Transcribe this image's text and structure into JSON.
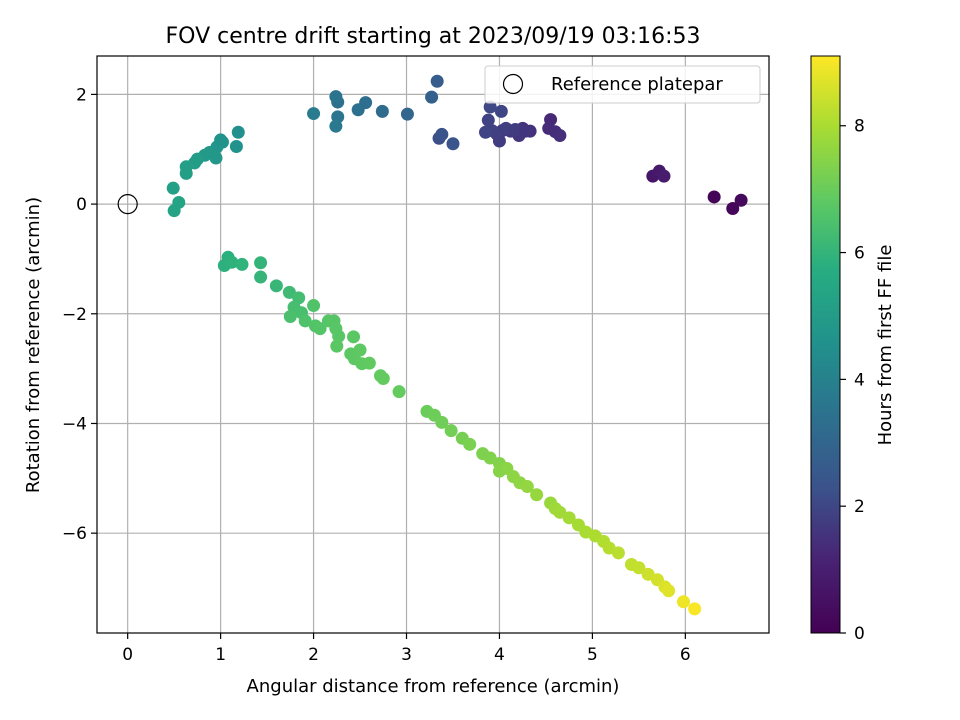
{
  "chart_data": {
    "type": "scatter",
    "title": "FOV centre drift starting at 2023/09/19 03:16:53",
    "xlabel": "Angular distance from reference (arcmin)",
    "ylabel": "Rotation from reference (arcmin)",
    "xlim": [
      -0.33,
      6.9
    ],
    "ylim": [
      -7.82,
      2.7
    ],
    "xticks": [
      0,
      1,
      2,
      3,
      4,
      5,
      6
    ],
    "yticks": [
      2,
      0,
      -2,
      -4,
      -6
    ],
    "ytick_labels": [
      "2",
      "0",
      "−2",
      "−4",
      "−6"
    ],
    "grid": true,
    "legend": {
      "location": "top-right",
      "entries": [
        "Reference platepar"
      ]
    },
    "reference_point": {
      "x": 0,
      "y": 0,
      "label": "Reference platepar"
    },
    "colorbar": {
      "label": "Hours from first FF file",
      "range": [
        0,
        9.1
      ],
      "ticks": [
        0,
        2,
        4,
        6,
        8
      ],
      "colormap": "viridis"
    },
    "series": [
      {
        "color_value": "hours",
        "points": [
          [
            6.31,
            0.13,
            0.1
          ],
          [
            6.51,
            -0.08,
            0.2
          ],
          [
            6.6,
            0.07,
            0.3
          ],
          [
            5.65,
            0.51,
            0.7
          ],
          [
            5.72,
            0.6,
            0.8
          ],
          [
            5.77,
            0.51,
            0.9
          ],
          [
            4.55,
            1.54,
            1.3
          ],
          [
            4.53,
            1.38,
            1.35
          ],
          [
            4.6,
            1.32,
            1.4
          ],
          [
            4.65,
            1.25,
            1.45
          ],
          [
            4.33,
            1.33,
            1.5
          ],
          [
            4.25,
            1.38,
            1.55
          ],
          [
            4.21,
            1.25,
            1.6
          ],
          [
            4.12,
            1.33,
            1.65
          ],
          [
            4.03,
            1.34,
            1.7
          ],
          [
            4.0,
            1.15,
            1.75
          ],
          [
            3.97,
            1.28,
            1.8
          ],
          [
            3.92,
            1.34,
            1.85
          ],
          [
            3.88,
            1.53,
            1.9
          ],
          [
            3.85,
            1.31,
            1.95
          ],
          [
            4.02,
            1.69,
            2.0
          ],
          [
            3.9,
            1.77,
            2.05
          ],
          [
            4.07,
            1.38,
            1.8
          ],
          [
            4.17,
            1.36,
            1.75
          ],
          [
            4.28,
            1.33,
            1.58
          ],
          [
            3.35,
            1.2,
            2.2
          ],
          [
            3.38,
            1.27,
            2.3
          ],
          [
            3.5,
            1.1,
            2.4
          ],
          [
            3.33,
            2.24,
            2.7
          ],
          [
            3.27,
            1.95,
            2.8
          ],
          [
            3.01,
            1.64,
            3.0
          ],
          [
            2.74,
            1.69,
            3.2
          ],
          [
            2.56,
            1.85,
            3.3
          ],
          [
            2.48,
            1.72,
            3.35
          ],
          [
            2.26,
            1.86,
            3.4
          ],
          [
            2.24,
            1.96,
            3.5
          ],
          [
            2.26,
            1.59,
            3.6
          ],
          [
            2.24,
            1.42,
            3.7
          ],
          [
            2.0,
            1.65,
            3.8
          ],
          [
            1.19,
            1.31,
            4.5
          ],
          [
            1.17,
            1.05,
            4.6
          ],
          [
            1.02,
            1.13,
            4.7
          ],
          [
            0.96,
            1.04,
            4.75
          ],
          [
            0.95,
            0.84,
            4.8
          ],
          [
            0.88,
            0.94,
            4.85
          ],
          [
            0.83,
            0.89,
            4.9
          ],
          [
            0.75,
            0.82,
            5.0
          ],
          [
            0.72,
            0.75,
            5.05
          ],
          [
            0.63,
            0.68,
            5.1
          ],
          [
            0.63,
            0.56,
            5.15
          ],
          [
            0.55,
            0.03,
            5.3
          ],
          [
            0.5,
            -0.12,
            5.35
          ],
          [
            0.49,
            0.29,
            5.2
          ],
          [
            1.0,
            1.17,
            4.65
          ],
          [
            1.08,
            -0.97,
            5.8
          ],
          [
            1.04,
            -1.12,
            5.85
          ],
          [
            1.12,
            -1.06,
            5.9
          ],
          [
            1.23,
            -1.1,
            5.95
          ],
          [
            1.43,
            -1.07,
            6.0
          ],
          [
            1.43,
            -1.33,
            6.05
          ],
          [
            1.6,
            -1.49,
            6.1
          ],
          [
            1.74,
            -1.61,
            6.2
          ],
          [
            1.84,
            -1.71,
            6.3
          ],
          [
            1.79,
            -1.88,
            6.35
          ],
          [
            1.87,
            -1.98,
            6.4
          ],
          [
            1.75,
            -2.05,
            6.45
          ],
          [
            1.91,
            -2.13,
            6.5
          ],
          [
            2.0,
            -1.85,
            6.55
          ],
          [
            2.02,
            -2.22,
            6.6
          ],
          [
            2.07,
            -2.27,
            6.62
          ],
          [
            2.16,
            -2.13,
            6.65
          ],
          [
            2.22,
            -2.13,
            6.68
          ],
          [
            2.24,
            -2.27,
            6.7
          ],
          [
            2.27,
            -2.41,
            6.72
          ],
          [
            2.25,
            -2.59,
            6.74
          ],
          [
            2.43,
            -2.42,
            6.76
          ],
          [
            2.4,
            -2.73,
            6.78
          ],
          [
            2.44,
            -2.82,
            6.8
          ],
          [
            2.5,
            -2.66,
            6.82
          ],
          [
            2.52,
            -2.91,
            6.84
          ],
          [
            2.6,
            -2.9,
            6.86
          ],
          [
            2.72,
            -3.13,
            6.88
          ],
          [
            2.75,
            -3.18,
            6.9
          ],
          [
            2.92,
            -3.42,
            6.92
          ],
          [
            3.22,
            -3.78,
            7.0
          ],
          [
            3.3,
            -3.85,
            7.05
          ],
          [
            3.38,
            -3.98,
            7.1
          ],
          [
            3.48,
            -4.13,
            7.15
          ],
          [
            3.6,
            -4.27,
            7.2
          ],
          [
            3.68,
            -4.38,
            7.25
          ],
          [
            3.82,
            -4.55,
            7.3
          ],
          [
            3.9,
            -4.63,
            7.35
          ],
          [
            4.0,
            -4.73,
            7.4
          ],
          [
            4.0,
            -4.87,
            7.45
          ],
          [
            4.08,
            -4.82,
            7.5
          ],
          [
            4.15,
            -4.97,
            7.55
          ],
          [
            4.22,
            -5.08,
            7.6
          ],
          [
            4.3,
            -5.15,
            7.65
          ],
          [
            4.4,
            -5.3,
            7.7
          ],
          [
            4.55,
            -5.45,
            7.75
          ],
          [
            4.6,
            -5.55,
            7.8
          ],
          [
            4.65,
            -5.62,
            7.85
          ],
          [
            4.75,
            -5.72,
            7.9
          ],
          [
            4.85,
            -5.85,
            7.95
          ],
          [
            4.93,
            -5.98,
            8.0
          ],
          [
            5.03,
            -6.05,
            8.05
          ],
          [
            5.12,
            -6.15,
            8.1
          ],
          [
            5.18,
            -6.27,
            8.15
          ],
          [
            5.28,
            -6.36,
            8.2
          ],
          [
            5.42,
            -6.57,
            8.3
          ],
          [
            5.5,
            -6.63,
            8.35
          ],
          [
            5.6,
            -6.75,
            8.45
          ],
          [
            5.7,
            -6.85,
            8.55
          ],
          [
            5.78,
            -6.98,
            8.65
          ],
          [
            5.82,
            -7.05,
            8.7
          ],
          [
            5.98,
            -7.25,
            8.9
          ],
          [
            6.1,
            -7.38,
            9.05
          ]
        ]
      }
    ]
  }
}
